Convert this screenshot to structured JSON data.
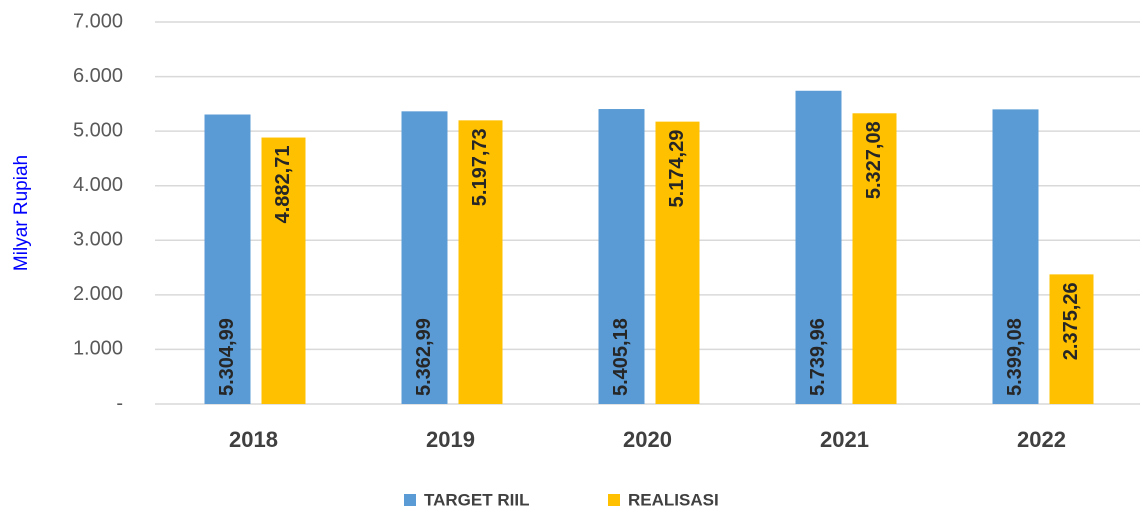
{
  "chart_data": {
    "type": "bar",
    "y_label": "Milyar Rupiah",
    "categories": [
      "2018",
      "2019",
      "2020",
      "2021",
      "2022"
    ],
    "series": [
      {
        "name": "TARGET RIIL",
        "color": "#5b9bd5",
        "values": [
          5304.99,
          5362.99,
          5405.18,
          5739.96,
          5399.08
        ],
        "value_labels": [
          "5.304,99",
          "5.362,99",
          "5.405,18",
          "5.739,96",
          "5.399,08"
        ]
      },
      {
        "name": "REALISASI",
        "color": "#ffc000",
        "values": [
          4882.71,
          5197.73,
          5174.29,
          5327.08,
          2375.26
        ],
        "value_labels": [
          "4.882,71",
          "5.197,73",
          "5.174,29",
          "5.327,08",
          "2.375,26"
        ]
      }
    ],
    "ylim": [
      0,
      7000
    ],
    "yticks": [
      {
        "value": 0,
        "label": "-"
      },
      {
        "value": 1000,
        "label": "1.000"
      },
      {
        "value": 2000,
        "label": "2.000"
      },
      {
        "value": 3000,
        "label": "3.000"
      },
      {
        "value": 4000,
        "label": "4.000"
      },
      {
        "value": 5000,
        "label": "5.000"
      },
      {
        "value": 6000,
        "label": "6.000"
      },
      {
        "value": 7000,
        "label": "7.000"
      }
    ],
    "grid": true
  }
}
